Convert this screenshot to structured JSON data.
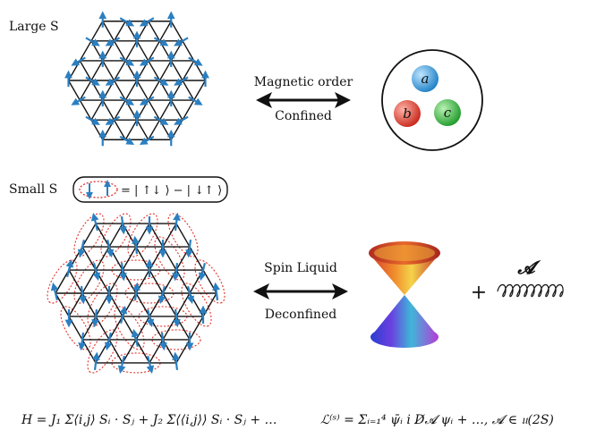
{
  "top": {
    "regime_label": "Large S",
    "arrow_top_label": "Magnetic order",
    "arrow_bottom_label": "Confined",
    "spinons": [
      {
        "label": "a",
        "color": "#2d9be0"
      },
      {
        "label": "b",
        "color": "#e23b2a"
      },
      {
        "label": "c",
        "color": "#2fb23a"
      }
    ]
  },
  "bottom": {
    "regime_label": "Small S",
    "singlet_formula": "= | ↑↓ ⟩ − | ↓↑ ⟩",
    "arrow_top_label": "Spin Liquid",
    "arrow_bottom_label": "Deconfined",
    "plus_sign": "+",
    "gauge_field_label": "𝓐"
  },
  "equations": {
    "hamiltonian": "H = J₁ Σ⟨i,j⟩ Sᵢ · Sⱼ + J₂ Σ⟨⟨i,j⟩⟩ Sᵢ · Sⱼ + …",
    "lagrangian": "ℒ⁽ˢ⁾ = Σᵢ₌₁⁴ ψ̄ᵢ i D̸𝓐 ψᵢ + …,   𝓐 ∈ 𝔲(2S)"
  },
  "colors": {
    "spin_arrow": "#2b7fc1",
    "lattice_line": "#111111",
    "singlet_ellipse": "#e0322a"
  }
}
